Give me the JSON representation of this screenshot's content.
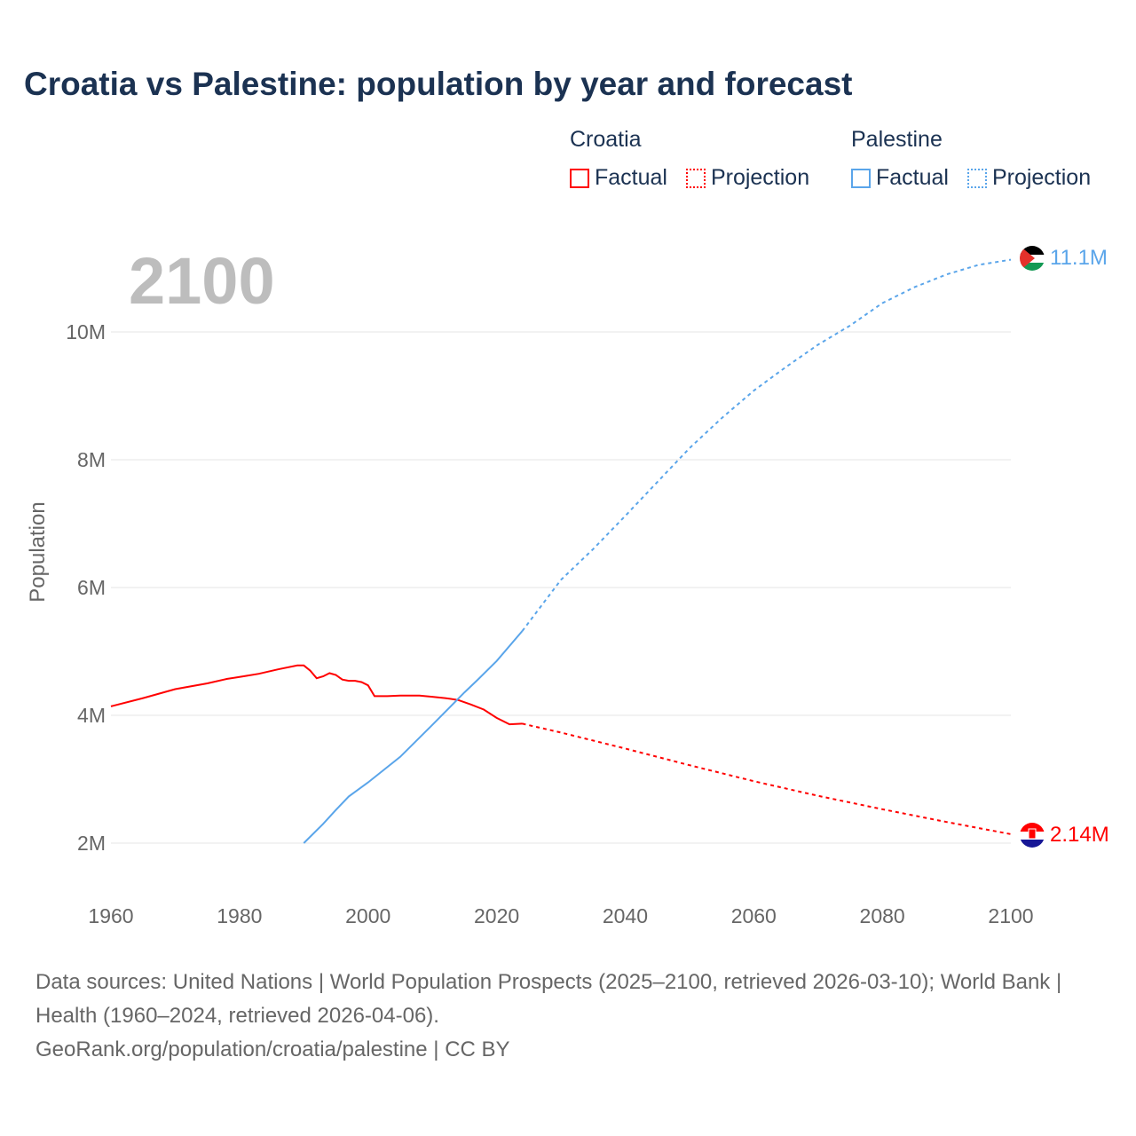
{
  "title": "Croatia vs Palestine: population by year and forecast",
  "legend": {
    "groups": [
      {
        "name": "Croatia",
        "color": "#ff0000",
        "factual": "Factual",
        "projection": "Projection"
      },
      {
        "name": "Palestine",
        "color": "#5aa5ea",
        "factual": "Factual",
        "projection": "Projection"
      }
    ]
  },
  "year_label": "2100",
  "footer": {
    "sources": "Data sources: United Nations | World Population Prospects (2025–2100, retrieved 2026-03-10); World Bank | Health (1960–2024, retrieved 2026-04-06).",
    "credit": "GeoRank.org/population/croatia/palestine | CC BY"
  },
  "chart_data": {
    "type": "line",
    "title": "Croatia vs Palestine: population by year and forecast",
    "xlabel": "",
    "ylabel": "Population",
    "xlim": [
      1960,
      2100
    ],
    "ylim": [
      1.2,
      11.5
    ],
    "x_ticks": [
      "1960",
      "1980",
      "2000",
      "2020",
      "2040",
      "2060",
      "2080",
      "2100"
    ],
    "x_tick_values": [
      1960,
      1980,
      2000,
      2020,
      2040,
      2060,
      2080,
      2100
    ],
    "y_ticks": [
      "2M",
      "4M",
      "6M",
      "8M",
      "10M"
    ],
    "y_tick_values": [
      2,
      4,
      6,
      8,
      10
    ],
    "grid": true,
    "series": [
      {
        "name": "Croatia",
        "color": "#ff0000",
        "end_label": "2.14M",
        "factual": [
          [
            1960,
            4.14
          ],
          [
            1965,
            4.27
          ],
          [
            1970,
            4.41
          ],
          [
            1975,
            4.5
          ],
          [
            1978,
            4.57
          ],
          [
            1980,
            4.6
          ],
          [
            1983,
            4.65
          ],
          [
            1986,
            4.72
          ],
          [
            1989,
            4.78
          ],
          [
            1990,
            4.78
          ],
          [
            1991,
            4.7
          ],
          [
            1992,
            4.58
          ],
          [
            1993,
            4.61
          ],
          [
            1994,
            4.66
          ],
          [
            1995,
            4.63
          ],
          [
            1996,
            4.56
          ],
          [
            1997,
            4.54
          ],
          [
            1998,
            4.54
          ],
          [
            1999,
            4.52
          ],
          [
            2000,
            4.47
          ],
          [
            2001,
            4.3
          ],
          [
            2003,
            4.3
          ],
          [
            2005,
            4.31
          ],
          [
            2008,
            4.31
          ],
          [
            2010,
            4.29
          ],
          [
            2012,
            4.27
          ],
          [
            2014,
            4.24
          ],
          [
            2016,
            4.17
          ],
          [
            2018,
            4.09
          ],
          [
            2020,
            3.96
          ],
          [
            2022,
            3.86
          ],
          [
            2024,
            3.87
          ]
        ],
        "projection": [
          [
            2024,
            3.87
          ],
          [
            2030,
            3.73
          ],
          [
            2040,
            3.48
          ],
          [
            2050,
            3.22
          ],
          [
            2060,
            2.97
          ],
          [
            2070,
            2.74
          ],
          [
            2080,
            2.53
          ],
          [
            2090,
            2.33
          ],
          [
            2100,
            2.14
          ]
        ]
      },
      {
        "name": "Palestine",
        "color": "#5aa5ea",
        "end_label": "11.1M",
        "factual": [
          [
            1990,
            2.0
          ],
          [
            1993,
            2.3
          ],
          [
            1995,
            2.52
          ],
          [
            1997,
            2.73
          ],
          [
            2000,
            2.95
          ],
          [
            2005,
            3.35
          ],
          [
            2010,
            3.85
          ],
          [
            2015,
            4.36
          ],
          [
            2017,
            4.55
          ],
          [
            2020,
            4.85
          ],
          [
            2024,
            5.32
          ]
        ],
        "projection": [
          [
            2024,
            5.32
          ],
          [
            2030,
            6.12
          ],
          [
            2035,
            6.6
          ],
          [
            2040,
            7.12
          ],
          [
            2045,
            7.65
          ],
          [
            2050,
            8.18
          ],
          [
            2055,
            8.65
          ],
          [
            2060,
            9.08
          ],
          [
            2065,
            9.45
          ],
          [
            2070,
            9.8
          ],
          [
            2075,
            10.1
          ],
          [
            2080,
            10.45
          ],
          [
            2085,
            10.7
          ],
          [
            2090,
            10.9
          ],
          [
            2095,
            11.05
          ],
          [
            2100,
            11.13
          ]
        ]
      }
    ]
  }
}
